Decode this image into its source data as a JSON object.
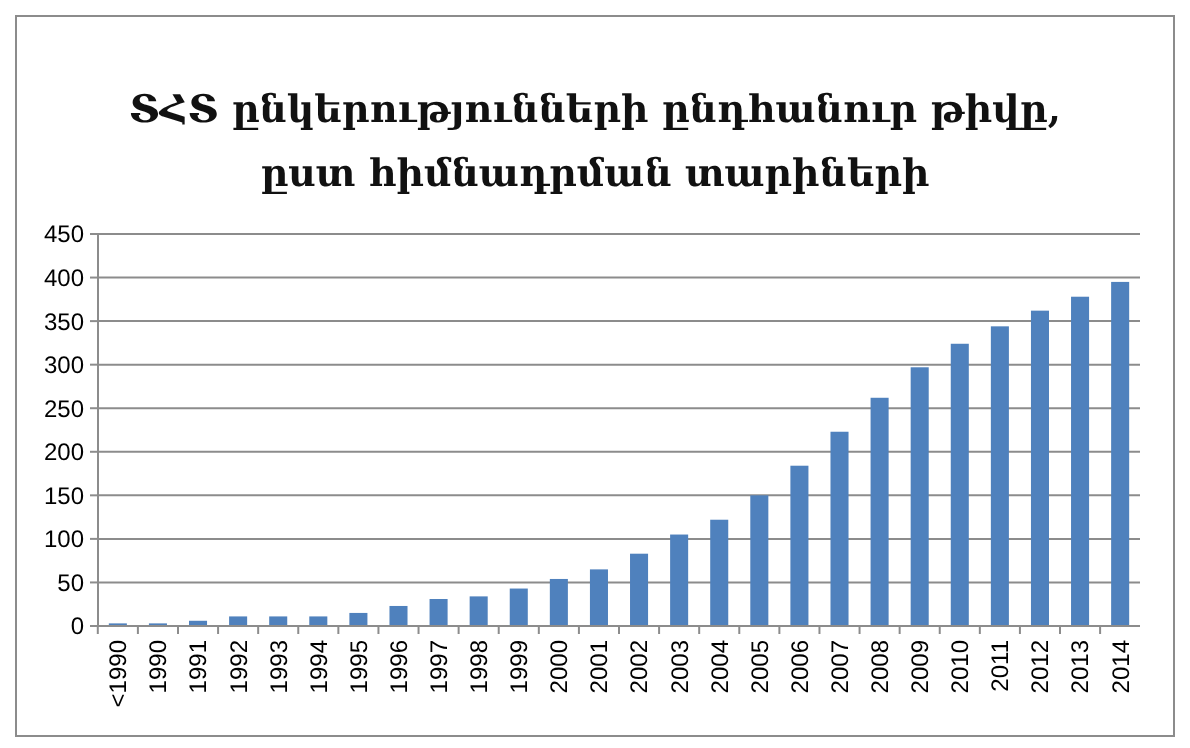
{
  "chart_data": {
    "type": "bar",
    "title": "ՏՀՏ ընկերությունների ընդհանուր թիվը,\nըստ հիմնադրման տարիների",
    "categories": [
      "<1990",
      "1990",
      "1991",
      "1992",
      "1993",
      "1994",
      "1995",
      "1996",
      "1997",
      "1998",
      "1999",
      "2000",
      "2001",
      "2002",
      "2003",
      "2004",
      "2005",
      "2006",
      "2007",
      "2008",
      "2009",
      "2010",
      "2011",
      "2012",
      "2013",
      "2014"
    ],
    "values": [
      3,
      3,
      6,
      11,
      11,
      11,
      15,
      23,
      31,
      34,
      43,
      54,
      65,
      83,
      105,
      122,
      150,
      184,
      223,
      262,
      297,
      324,
      344,
      362,
      378,
      395
    ],
    "color": "#4f81bd",
    "ylim": [
      0,
      450
    ],
    "yticks": [
      0,
      50,
      100,
      150,
      200,
      250,
      300,
      350,
      400,
      450
    ],
    "grid": "y"
  }
}
